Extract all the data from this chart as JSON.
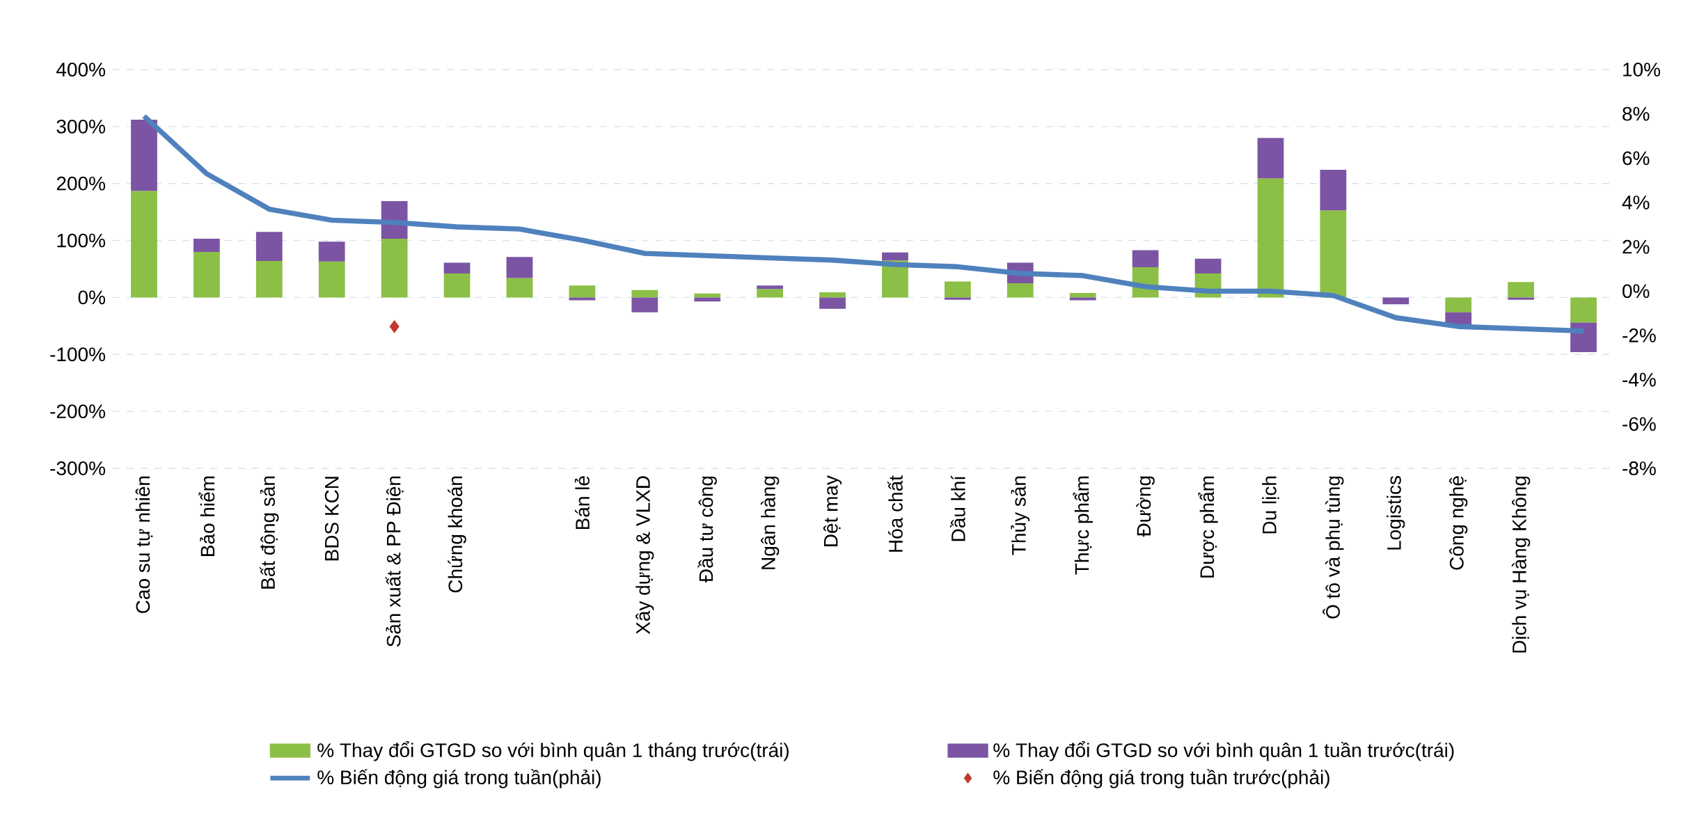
{
  "chart_data": {
    "type": "bar",
    "stacked": true,
    "categories": [
      "Cao su tự nhiên",
      "Bảo hiểm",
      "Bất động sản",
      "BDS KCN",
      "Sản xuất & PP Điện",
      "Chứng khoán",
      null,
      "Bán lẻ",
      "Xây dựng & VLXD",
      "Đầu tư công",
      "Ngân hàng",
      "Dệt may",
      "Hóa chất",
      "Dầu khí",
      "Thủy sản",
      "Thực phẩm",
      "Đường",
      "Dược phẩm",
      "Du lịch",
      "Ô tô và phụ tùng",
      "Logistics",
      "Công nghệ",
      "Dịch vụ Hàng Không",
      null
    ],
    "series": [
      {
        "name": "% Thay đổi GTGD so với bình quân 1 tháng trước(trái)",
        "color": "#8cbf45",
        "values": [
          187,
          80,
          64,
          63,
          103,
          42,
          34,
          21,
          13,
          7,
          15,
          9,
          65,
          28,
          25,
          8,
          53,
          42,
          209,
          153,
          0,
          -26,
          27,
          -44
        ]
      },
      {
        "name": "% Thay đổi GTGD so với bình quân 1 tuần trước(trái)",
        "color": "#7b55a3",
        "values": [
          125,
          23,
          51,
          35,
          66,
          19,
          37,
          -5,
          -26,
          -7,
          6,
          -20,
          14,
          -4,
          36,
          -5,
          30,
          26,
          71,
          71,
          -12,
          -24,
          -4,
          -52
        ]
      },
      {
        "name": "% Biến động giá trong tuần(phải)",
        "type": "line",
        "axis": "y2",
        "color": "#4f81bd",
        "marker": "none",
        "values": [
          7.9,
          5.3,
          3.7,
          3.2,
          3.1,
          2.9,
          2.8,
          2.3,
          1.7,
          1.6,
          1.5,
          1.4,
          1.2,
          1.1,
          0.8,
          0.7,
          0.2,
          0.0,
          0.0,
          -0.2,
          -1.2,
          -1.6,
          -1.7,
          -1.8
        ]
      },
      {
        "name": "% Biến động giá trong tuần trước(phải)",
        "type": "scatter",
        "axis": "y2",
        "color": "#c0392b",
        "marker": "diamond",
        "values": [
          null,
          null,
          null,
          null,
          -1.6,
          null,
          null,
          null,
          null,
          null,
          null,
          null,
          null,
          null,
          null,
          null,
          null,
          null,
          null,
          null,
          null,
          null,
          null,
          null
        ]
      }
    ],
    "ylim": [
      -300,
      400
    ],
    "yticks": [
      {
        "value": -300,
        "label": "-300%"
      },
      {
        "value": -200,
        "label": "-200%"
      },
      {
        "value": -100,
        "label": "-100%"
      },
      {
        "value": 0,
        "label": "0%"
      },
      {
        "value": 100,
        "label": "100%"
      },
      {
        "value": 200,
        "label": "200%"
      },
      {
        "value": 300,
        "label": "300%"
      },
      {
        "value": 400,
        "label": "400%"
      }
    ],
    "y2lim": [
      -8,
      10
    ],
    "y2ticks": [
      {
        "value": -8,
        "label": "-8%"
      },
      {
        "value": -6,
        "label": "-6%"
      },
      {
        "value": -4,
        "label": "-4%"
      },
      {
        "value": -2,
        "label": "-2%"
      },
      {
        "value": 0,
        "label": "0%"
      },
      {
        "value": 2,
        "label": "2%"
      },
      {
        "value": 4,
        "label": "4%"
      },
      {
        "value": 6,
        "label": "6%"
      },
      {
        "value": 8,
        "label": "8%"
      },
      {
        "value": 10,
        "label": "10%"
      }
    ],
    "grid": "y",
    "legend": "bottom"
  }
}
